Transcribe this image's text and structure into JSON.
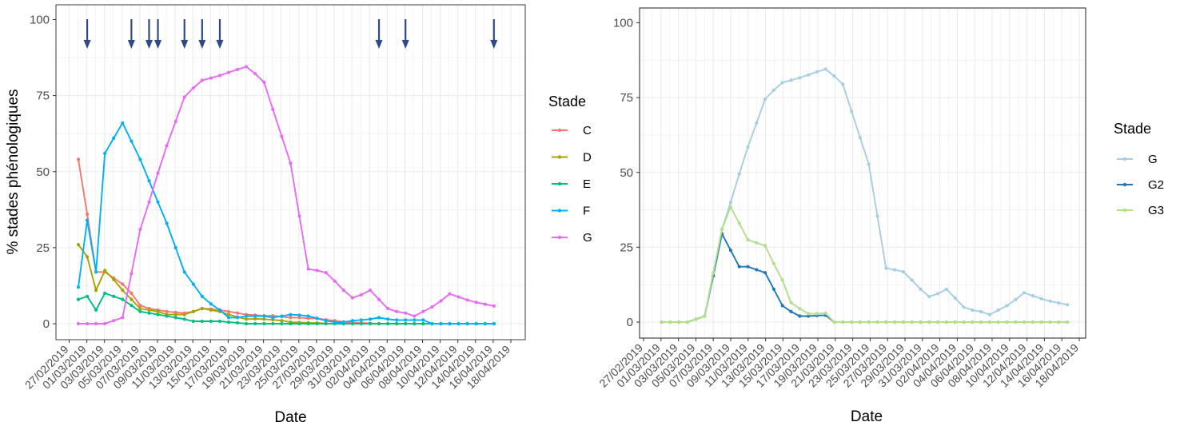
{
  "chart_data": [
    {
      "type": "line",
      "xlabel": "Date",
      "ylabel": "% stades phénologiques",
      "ylim": [
        0,
        100
      ],
      "y_ticks": [
        "0",
        "25",
        "50",
        "75",
        "100"
      ],
      "x_tick_labels": [
        "27/02/2019",
        "01/03/2019",
        "03/03/2019",
        "05/03/2019",
        "07/03/2019",
        "09/03/2019",
        "11/03/2019",
        "13/03/2019",
        "15/03/2019",
        "17/03/2019",
        "19/03/2019",
        "21/03/2019",
        "23/03/2019",
        "25/03/2019",
        "27/03/2019",
        "29/03/2019",
        "31/03/2019",
        "02/04/2019",
        "04/04/2019",
        "06/04/2019",
        "08/04/2019",
        "10/04/2019",
        "12/04/2019",
        "14/04/2019",
        "16/04/2019",
        "18/04/2019"
      ],
      "x_start_date": "2019-02-28",
      "x": [
        0,
        1,
        2,
        3,
        4,
        5,
        6,
        7,
        8,
        9,
        10,
        11,
        12,
        13,
        14,
        15,
        16,
        17,
        18,
        19,
        20,
        21,
        22,
        23,
        24,
        25,
        26,
        27,
        28,
        29,
        30,
        31,
        32,
        33,
        34,
        35,
        36,
        37,
        38,
        39,
        40,
        41,
        42,
        43,
        44,
        45,
        46,
        47
      ],
      "grid": true,
      "legend_title": "Stade",
      "legend_position": "right",
      "arrows_x": [
        1,
        6,
        8,
        9,
        12,
        14,
        16,
        34,
        37,
        47
      ],
      "series": [
        {
          "name": "C",
          "color": "#f8766d",
          "values": [
            54,
            36,
            17,
            17,
            15,
            13,
            10,
            6,
            5,
            4.5,
            4,
            3.7,
            3.5,
            4,
            5,
            4.8,
            4.5,
            4,
            3.5,
            3,
            2.8,
            2.6,
            2.6,
            2.3,
            2,
            2,
            1.8,
            1.7,
            1.3,
            1,
            0.6,
            0.4,
            0.3,
            0.1,
            0,
            0,
            0,
            0,
            0,
            0,
            0,
            0,
            0,
            0,
            0,
            0,
            0,
            0
          ]
        },
        {
          "name": "D",
          "color": "#a3a500",
          "values": [
            26,
            22,
            11,
            17.5,
            14.5,
            11,
            8,
            5,
            4.5,
            4,
            3,
            3,
            3,
            4,
            5,
            4.5,
            4,
            3,
            2.2,
            1.5,
            1.6,
            1.5,
            1.3,
            1,
            0.5,
            0.4,
            0.3,
            0.2,
            0.1,
            0,
            0,
            0,
            0,
            0,
            0,
            0,
            0,
            0,
            0,
            0,
            0,
            0,
            0,
            0,
            0,
            0,
            0,
            0
          ]
        },
        {
          "name": "E",
          "color": "#00bf7d",
          "values": [
            8,
            9,
            4.5,
            10,
            9,
            8,
            6,
            4,
            3.5,
            3,
            2.5,
            2,
            1.5,
            0.8,
            0.8,
            0.8,
            0.8,
            0.5,
            0.3,
            0,
            0,
            0,
            0,
            0,
            0,
            0,
            0,
            0,
            0,
            0,
            0,
            0,
            0,
            0,
            0,
            0,
            0,
            0,
            0,
            0,
            0,
            0,
            0,
            0,
            0,
            0,
            0,
            0
          ]
        },
        {
          "name": "F",
          "color": "#00b0f6",
          "values": [
            12,
            34,
            17,
            56,
            61,
            66,
            60,
            54,
            47,
            40,
            33,
            25,
            17,
            13,
            9,
            6.5,
            4.5,
            2,
            2,
            2.5,
            2.5,
            2.5,
            2,
            2.5,
            3,
            2.8,
            2.5,
            1.8,
            1,
            0.5,
            0.5,
            1,
            1.2,
            1.5,
            2,
            1.5,
            1.2,
            1.2,
            1.2,
            1.2,
            0,
            0,
            0,
            0,
            0,
            0,
            0,
            0
          ]
        },
        {
          "name": "G",
          "color": "#e76bf3",
          "values": [
            0,
            0,
            0,
            0,
            1,
            2,
            16.5,
            31,
            40,
            49.5,
            58.5,
            66.5,
            74.5,
            77.5,
            80,
            80.8,
            81.6,
            82.6,
            83.6,
            84.5,
            82.2,
            79.4,
            70.5,
            61.6,
            52.8,
            35.4,
            18,
            17.5,
            16.8,
            14,
            11,
            8.5,
            9.5,
            11,
            8,
            5,
            4,
            3.5,
            2.5,
            4,
            5.5,
            7.5,
            9.8,
            8.8,
            7.8,
            7,
            6.4,
            5.8
          ]
        }
      ]
    },
    {
      "type": "line",
      "xlabel": "Date",
      "ylabel": "",
      "ylim": [
        0,
        100
      ],
      "y_ticks": [
        "0",
        "25",
        "50",
        "75",
        "100"
      ],
      "x_tick_labels": [
        "27/02/2019",
        "01/03/2019",
        "03/03/2019",
        "05/03/2019",
        "07/03/2019",
        "09/03/2019",
        "11/03/2019",
        "13/03/2019",
        "15/03/2019",
        "17/03/2019",
        "19/03/2019",
        "21/03/2019",
        "23/03/2019",
        "25/03/2019",
        "27/03/2019",
        "29/03/2019",
        "31/03/2019",
        "02/04/2019",
        "04/04/2019",
        "06/04/2019",
        "08/04/2019",
        "10/04/2019",
        "12/04/2019",
        "14/04/2019",
        "16/04/2019",
        "18/04/2019"
      ],
      "x_start_date": "2019-02-28",
      "x": [
        0,
        1,
        2,
        3,
        4,
        5,
        6,
        7,
        8,
        9,
        10,
        11,
        12,
        13,
        14,
        15,
        16,
        17,
        18,
        19,
        20,
        21,
        22,
        23,
        24,
        25,
        26,
        27,
        28,
        29,
        30,
        31,
        32,
        33,
        34,
        35,
        36,
        37,
        38,
        39,
        40,
        41,
        42,
        43,
        44,
        45,
        46,
        47
      ],
      "grid": true,
      "legend_title": "Stade",
      "legend_position": "right",
      "series": [
        {
          "name": "G",
          "color": "#a6cee3",
          "values": [
            0,
            0,
            0,
            0,
            1,
            2,
            16.5,
            31,
            40,
            49.5,
            58.5,
            66.5,
            74.5,
            77.5,
            80,
            80.8,
            81.6,
            82.6,
            83.6,
            84.5,
            82.2,
            79.4,
            70.5,
            61.6,
            52.8,
            35.4,
            18,
            17.5,
            16.8,
            14,
            11,
            8.5,
            9.5,
            11,
            8,
            5,
            4,
            3.5,
            2.5,
            4,
            5.5,
            7.5,
            9.8,
            8.8,
            7.8,
            7,
            6.4,
            5.8
          ]
        },
        {
          "name": "G2",
          "color": "#1f78b4",
          "values": [
            0,
            0,
            0,
            0,
            1,
            2,
            15.5,
            29.5,
            24,
            18.5,
            18.5,
            17.5,
            16.5,
            11,
            5.5,
            3.5,
            2,
            2,
            2.2,
            2.3,
            0,
            0,
            0,
            0,
            0,
            0,
            0,
            0,
            0,
            0,
            0,
            0,
            0,
            0,
            0,
            0,
            0,
            0,
            0,
            0,
            0,
            0,
            0,
            0,
            0,
            0,
            0,
            0
          ]
        },
        {
          "name": "G3",
          "color": "#b2df8a",
          "values": [
            0,
            0,
            0,
            0,
            1,
            2,
            16.5,
            31,
            38.5,
            33,
            27.5,
            26.5,
            25.5,
            19.5,
            14,
            6.5,
            4.5,
            2.8,
            2.8,
            3,
            0,
            0,
            0,
            0,
            0,
            0,
            0,
            0,
            0,
            0,
            0,
            0,
            0,
            0,
            0,
            0,
            0,
            0,
            0,
            0,
            0,
            0,
            0,
            0,
            0,
            0,
            0,
            0
          ]
        }
      ]
    }
  ]
}
